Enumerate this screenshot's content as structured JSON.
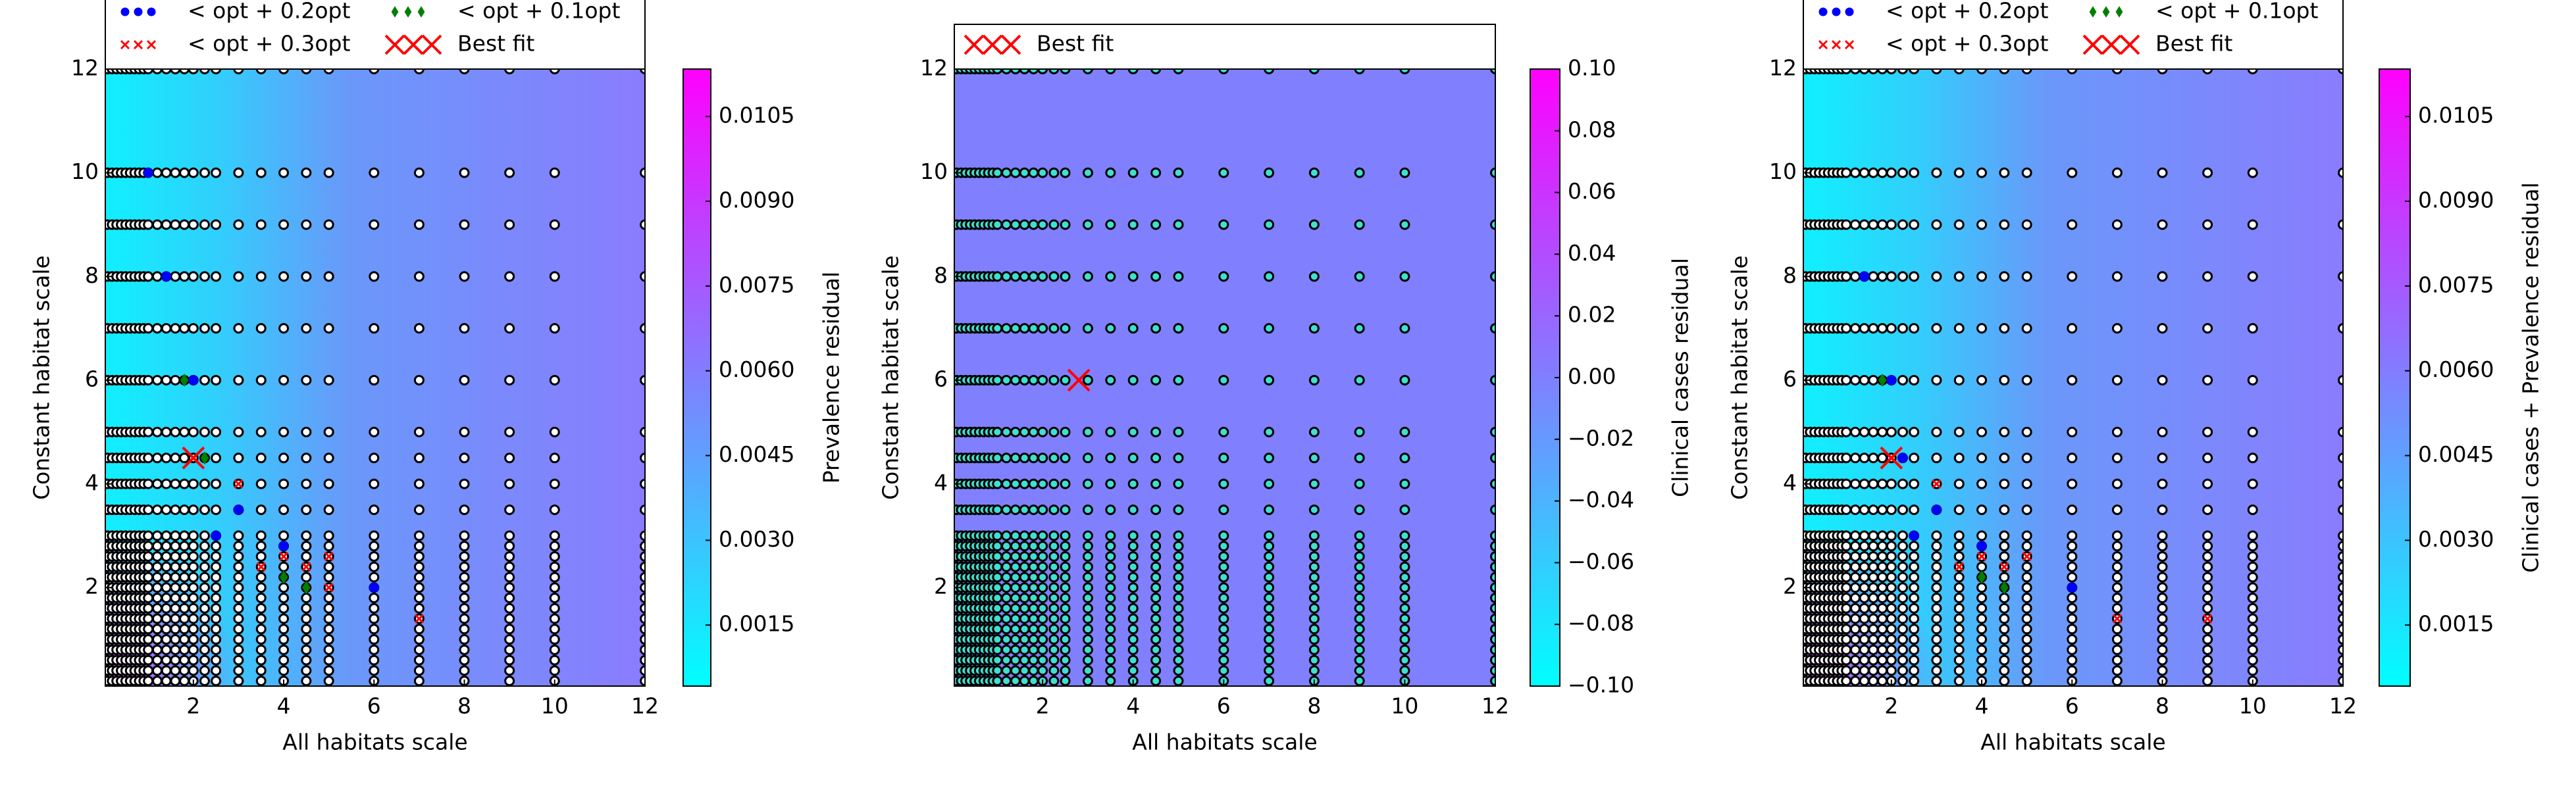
{
  "chart_data": [
    {
      "type": "heatmap-scatter",
      "xlabel": "All habitats scale",
      "ylabel": "Constant habitat scale",
      "colorbar_label": "Prevalence residual",
      "xlim": [
        0.05,
        12
      ],
      "ylim": [
        0.1,
        12
      ],
      "xticks": [
        2,
        4,
        6,
        8,
        10,
        12
      ],
      "yticks": [
        2,
        4,
        6,
        8,
        10,
        12
      ],
      "clim": [
        0.00042,
        0.01134
      ],
      "cticks": [
        0.0015,
        {
          "value": 0.003,
          "label": "0.0030"
        },
        0.0045,
        {
          "value": 0.006,
          "label": "0.0060"
        },
        0.0075,
        {
          "value": 0.009,
          "label": "0.0090"
        },
        0.0105
      ],
      "grid_x": [
        0.1,
        0.2,
        0.3,
        0.4,
        0.5,
        0.6,
        0.7,
        0.8,
        0.9,
        1,
        1.2,
        1.4,
        1.6,
        1.8,
        2,
        2.25,
        2.5,
        3,
        3.5,
        4,
        4.5,
        5,
        6,
        7,
        8,
        9,
        10,
        12
      ],
      "grid_y": [
        0.2,
        0.4,
        0.6,
        0.8,
        1,
        1.2,
        1.4,
        1.6,
        1.8,
        2,
        2.2,
        2.4,
        2.6,
        2.8,
        3,
        3.5,
        4,
        4.5,
        5,
        6,
        7,
        8,
        9,
        10,
        12
      ],
      "marker_fill": "#ffffff",
      "series": [
        {
          "name": "< opt + 0.2opt",
          "color": "#0000ff",
          "marker": "o",
          "x": [
            1,
            1.4,
            2,
            2.5,
            3,
            4,
            6
          ],
          "y": [
            10,
            8,
            6,
            3,
            3.5,
            2.8,
            2
          ]
        },
        {
          "name": "< opt + 0.3opt",
          "color": "#ff0000",
          "marker": "x",
          "x": [
            3.5,
            4,
            4.5,
            5,
            5,
            7,
            3
          ],
          "y": [
            2.4,
            2.6,
            2.4,
            2.6,
            2,
            1.4,
            4
          ]
        },
        {
          "name": "< opt + 0.1opt",
          "color": "#008000",
          "marker": "d",
          "x": [
            1.8,
            2.25,
            4,
            4.5
          ],
          "y": [
            6,
            4.5,
            2.2,
            2
          ]
        },
        {
          "name": "Best fit",
          "color": "#ff0000",
          "marker": "X",
          "x": [
            2
          ],
          "y": [
            4.5
          ]
        }
      ]
    },
    {
      "type": "heatmap-scatter",
      "xlabel": "All habitats scale",
      "ylabel": "Constant habitat scale",
      "colorbar_label": "Clinical cases residual",
      "xlim": [
        0.05,
        12
      ],
      "ylim": [
        0.1,
        12
      ],
      "xticks": [
        2,
        4,
        6,
        8,
        10,
        12
      ],
      "yticks": [
        2,
        4,
        6,
        8,
        10,
        12
      ],
      "clim": [
        -0.1,
        0.1
      ],
      "cticks": [
        {
          "value": -0.1,
          "label": "−0.10"
        },
        {
          "value": -0.08,
          "label": "−0.08"
        },
        {
          "value": -0.06,
          "label": "−0.06"
        },
        {
          "value": -0.04,
          "label": "−0.04"
        },
        {
          "value": -0.02,
          "label": "−0.02"
        },
        {
          "value": 0,
          "label": "0.00"
        },
        0.02,
        0.04,
        0.06,
        0.08,
        {
          "value": 0.1,
          "label": "0.10"
        }
      ],
      "grid_x": [
        0.1,
        0.2,
        0.3,
        0.4,
        0.5,
        0.6,
        0.7,
        0.8,
        0.9,
        1,
        1.2,
        1.4,
        1.6,
        1.8,
        2,
        2.25,
        2.5,
        3,
        3.5,
        4,
        4.5,
        5,
        6,
        7,
        8,
        9,
        10,
        12
      ],
      "grid_y": [
        0.2,
        0.4,
        0.6,
        0.8,
        1,
        1.2,
        1.4,
        1.6,
        1.8,
        2,
        2.2,
        2.4,
        2.6,
        2.8,
        3,
        3.5,
        4,
        4.5,
        5,
        6,
        7,
        8,
        9,
        10,
        12
      ],
      "marker_fill": "#40e0d0",
      "series": [
        {
          "name": "Best fit",
          "color": "#ff0000",
          "marker": "X",
          "x": [
            2.8
          ],
          "y": [
            6
          ]
        }
      ]
    },
    {
      "type": "heatmap-scatter",
      "xlabel": "All habitats scale",
      "ylabel": "Constant habitat scale",
      "colorbar_label": "Clinical cases + Prevalence residual",
      "xlim": [
        0.05,
        12
      ],
      "ylim": [
        0.1,
        12
      ],
      "xticks": [
        2,
        4,
        6,
        8,
        10,
        12
      ],
      "yticks": [
        2,
        4,
        6,
        8,
        10,
        12
      ],
      "clim": [
        0.00042,
        0.01134
      ],
      "cticks": [
        0.0015,
        {
          "value": 0.003,
          "label": "0.0030"
        },
        0.0045,
        {
          "value": 0.006,
          "label": "0.0060"
        },
        0.0075,
        {
          "value": 0.009,
          "label": "0.0090"
        },
        0.0105
      ],
      "grid_x": [
        0.1,
        0.2,
        0.3,
        0.4,
        0.5,
        0.6,
        0.7,
        0.8,
        0.9,
        1,
        1.2,
        1.4,
        1.6,
        1.8,
        2,
        2.25,
        2.5,
        3,
        3.5,
        4,
        4.5,
        5,
        6,
        7,
        8,
        9,
        10,
        12
      ],
      "grid_y": [
        0.2,
        0.4,
        0.6,
        0.8,
        1,
        1.2,
        1.4,
        1.6,
        1.8,
        2,
        2.2,
        2.4,
        2.6,
        2.8,
        3,
        3.5,
        4,
        4.5,
        5,
        6,
        7,
        8,
        9,
        10,
        12
      ],
      "marker_fill": "#ffffff",
      "series": [
        {
          "name": "< opt + 0.2opt",
          "color": "#0000ff",
          "marker": "o",
          "x": [
            1.4,
            2,
            2.5,
            3,
            4,
            6,
            2.25
          ],
          "y": [
            8,
            6,
            3,
            3.5,
            2.8,
            2,
            4.5
          ]
        },
        {
          "name": "< opt + 0.3opt",
          "color": "#ff0000",
          "marker": "x",
          "x": [
            3.5,
            4,
            4.5,
            5,
            7,
            9,
            3
          ],
          "y": [
            2.4,
            2.6,
            2.4,
            2.6,
            1.4,
            1.4,
            4
          ]
        },
        {
          "name": "< opt + 0.1opt",
          "color": "#008000",
          "marker": "d",
          "x": [
            1.8,
            4,
            4.5
          ],
          "y": [
            6,
            2.2,
            2
          ]
        },
        {
          "name": "Best fit",
          "color": "#ff0000",
          "marker": "X",
          "x": [
            2
          ],
          "y": [
            4.5
          ]
        }
      ]
    }
  ]
}
